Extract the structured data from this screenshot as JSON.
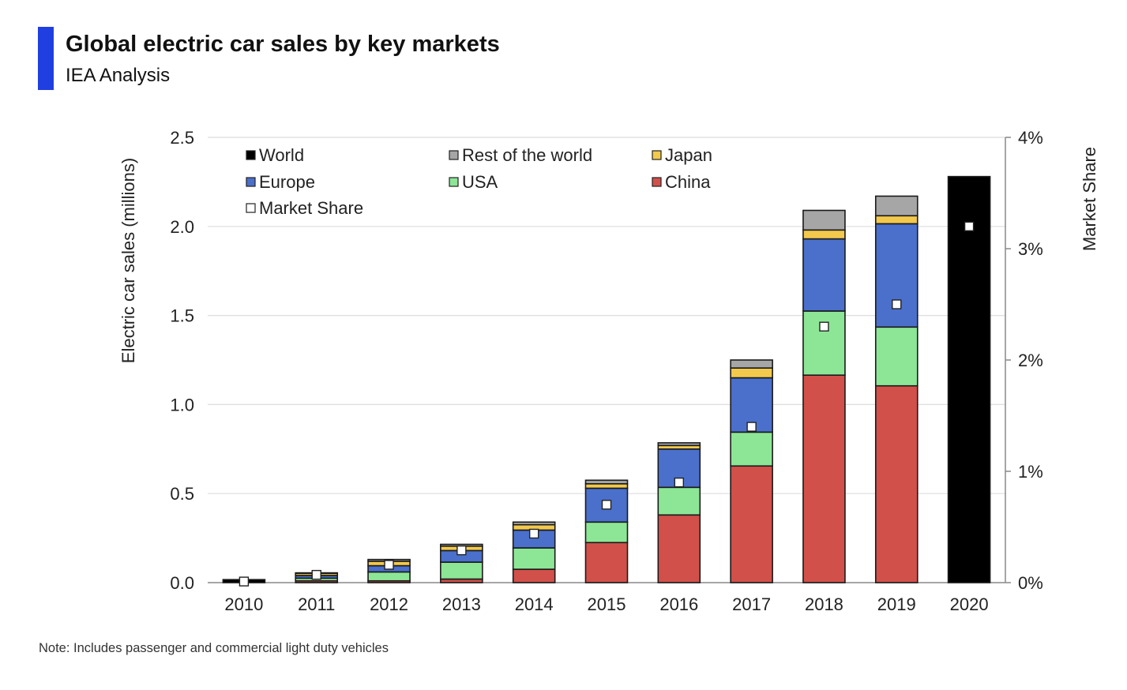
{
  "header": {
    "title": "Global electric car sales by key markets",
    "subtitle": "IEA Analysis",
    "accent_color": "#1f3fe0"
  },
  "footer": {
    "note": "Note:  Includes passenger and commercial light duty vehicles"
  },
  "chart_data": {
    "type": "bar",
    "stacked": true,
    "categories": [
      "2010",
      "2011",
      "2012",
      "2013",
      "2014",
      "2015",
      "2016",
      "2017",
      "2018",
      "2019",
      "2020"
    ],
    "ylabel": "Electric car sales  (millions)",
    "ylim": [
      0,
      2.5
    ],
    "yticks": [
      "0.0",
      "0.5",
      "1.0",
      "1.5",
      "2.0",
      "2.5"
    ],
    "y2label": "Market Share",
    "y2lim": [
      0,
      4
    ],
    "y2ticks": [
      "0%",
      "1%",
      "2%",
      "3%",
      "4%"
    ],
    "grid": true,
    "legend_position": "top-left",
    "series": [
      {
        "name": "China",
        "color": "#d2504a",
        "values": [
          0.0,
          0.01,
          0.01,
          0.02,
          0.075,
          0.225,
          0.38,
          0.655,
          1.165,
          1.105,
          null
        ]
      },
      {
        "name": "USA",
        "color": "#8ce696",
        "values": [
          0.0,
          0.015,
          0.05,
          0.095,
          0.12,
          0.115,
          0.155,
          0.19,
          0.36,
          0.33,
          null
        ]
      },
      {
        "name": "Europe",
        "color": "#4a70cc",
        "values": [
          0.0,
          0.015,
          0.035,
          0.065,
          0.1,
          0.19,
          0.215,
          0.305,
          0.405,
          0.58,
          null
        ]
      },
      {
        "name": "Japan",
        "color": "#f2c94c",
        "values": [
          0.0,
          0.012,
          0.025,
          0.025,
          0.03,
          0.025,
          0.02,
          0.055,
          0.05,
          0.045,
          null
        ]
      },
      {
        "name": "Rest of the world",
        "color": "#a6a6a6",
        "values": [
          0.0,
          0.003,
          0.01,
          0.01,
          0.015,
          0.02,
          0.015,
          0.045,
          0.11,
          0.11,
          null
        ]
      },
      {
        "name": "World",
        "color": "#000000",
        "values": [
          0.017,
          null,
          null,
          null,
          null,
          null,
          null,
          null,
          null,
          null,
          2.28
        ]
      }
    ],
    "market_share_series": {
      "name": "Market Share",
      "unit": "%",
      "values": [
        0.01,
        0.07,
        0.16,
        0.29,
        0.44,
        0.7,
        0.9,
        1.4,
        2.3,
        2.5,
        3.2
      ]
    },
    "legend": [
      "World",
      "Rest of the world",
      "Japan",
      "Europe",
      "USA",
      "China",
      "Market Share"
    ]
  }
}
